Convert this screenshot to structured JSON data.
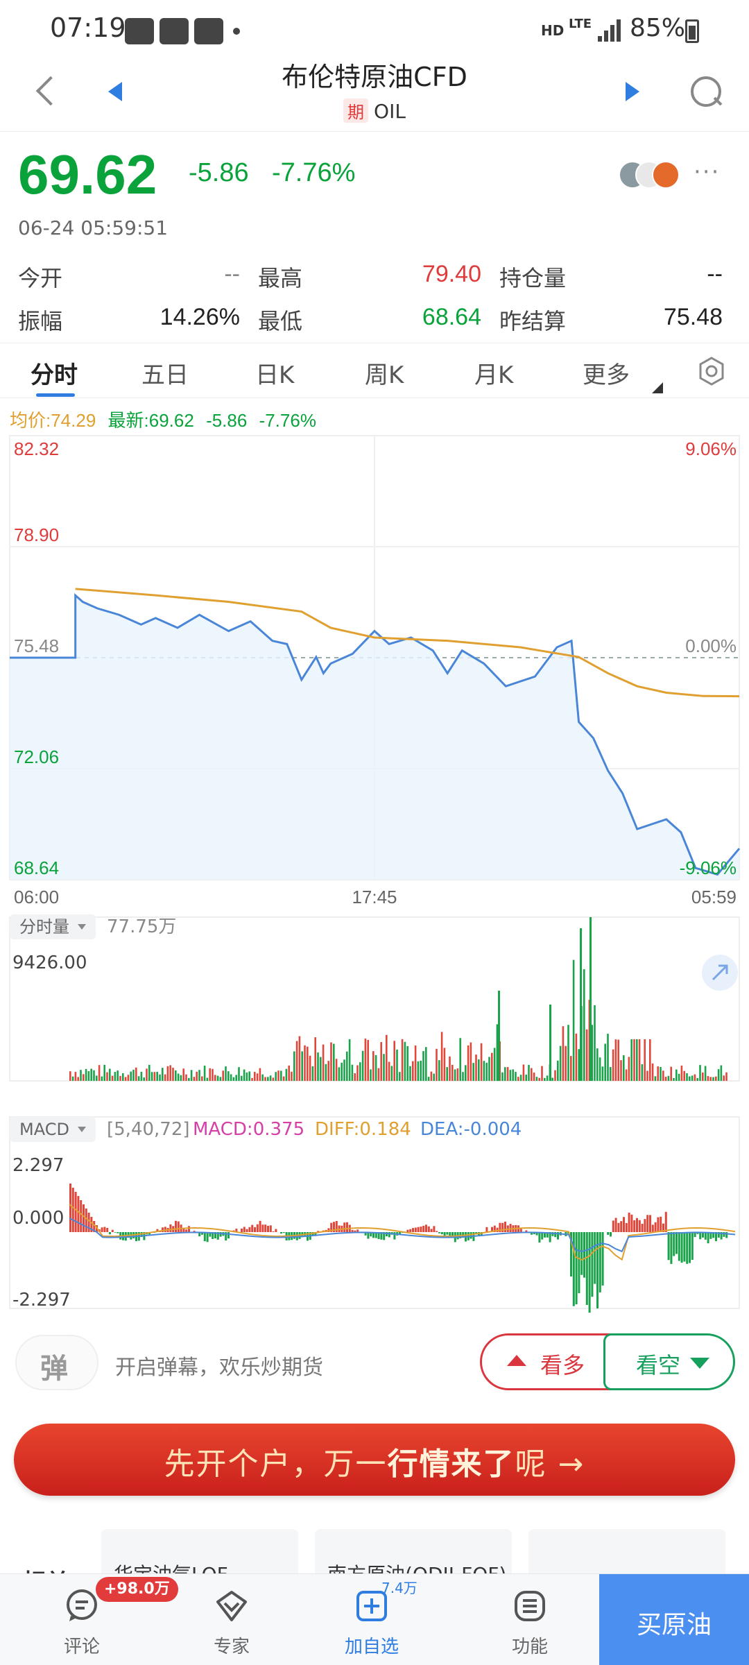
{
  "status_bar": {
    "time": "07:19",
    "network_hd": "HD",
    "network_lte": "LTE",
    "battery": "85%"
  },
  "header": {
    "title": "布伦特原油CFD",
    "badge": "期",
    "code": "OIL"
  },
  "quote": {
    "price": "69.62",
    "change": "-5.86",
    "change_pct": "-7.76%",
    "timestamp": "06-24 05:59:51"
  },
  "stats": {
    "open_label": "今开",
    "open_value": "--",
    "high_label": "最高",
    "high_value": "79.40",
    "oi_label": "持仓量",
    "oi_value": "--",
    "amp_label": "振幅",
    "amp_value": "14.26%",
    "low_label": "最低",
    "low_value": "68.64",
    "prev_label": "昨结算",
    "prev_value": "75.48"
  },
  "tabs": [
    "分时",
    "五日",
    "日K",
    "周K",
    "月K",
    "更多"
  ],
  "info_line": {
    "avg_label": "均价:74.29",
    "latest_label": "最新:69.62",
    "change": "-5.86",
    "pct": "-7.76%"
  },
  "chart_data": {
    "type": "line",
    "title": "",
    "x_ticks": [
      "06:00",
      "17:45",
      "05:59"
    ],
    "y_ticks_left": [
      "82.32",
      "78.90",
      "75.48",
      "72.06",
      "68.64"
    ],
    "y_ticks_right": [
      "9.06%",
      "0.00%",
      "-9.06%"
    ],
    "ylim": [
      68.64,
      82.32
    ],
    "reference_line": 75.48,
    "grid": true,
    "series": [
      {
        "name": "最新",
        "color": "#4a86d8",
        "x": [
          0,
          0.09,
          0.09,
          0.1,
          0.12,
          0.15,
          0.18,
          0.2,
          0.23,
          0.26,
          0.3,
          0.33,
          0.36,
          0.38,
          0.4,
          0.42,
          0.43,
          0.44,
          0.47,
          0.5,
          0.52,
          0.55,
          0.58,
          0.6,
          0.62,
          0.65,
          0.68,
          0.72,
          0.75,
          0.77,
          0.78,
          0.8,
          0.82,
          0.84,
          0.86,
          0.9,
          0.92,
          0.94,
          0.97,
          1
        ],
        "y": [
          75.48,
          75.48,
          77.4,
          77.2,
          77.0,
          76.8,
          76.5,
          76.7,
          76.4,
          76.8,
          76.3,
          76.6,
          76.0,
          75.9,
          74.8,
          75.5,
          75.0,
          75.3,
          75.6,
          76.3,
          75.9,
          76.1,
          75.7,
          75.0,
          75.7,
          75.3,
          74.6,
          74.9,
          75.8,
          76.0,
          73.5,
          73.0,
          72.0,
          71.3,
          70.2,
          70.5,
          70.1,
          69.0,
          68.8,
          69.6
        ]
      },
      {
        "name": "均价",
        "color": "#e0a030",
        "x": [
          0.09,
          0.2,
          0.3,
          0.4,
          0.44,
          0.5,
          0.6,
          0.7,
          0.78,
          0.82,
          0.86,
          0.9,
          0.95,
          1
        ],
        "y": [
          77.6,
          77.4,
          77.2,
          76.9,
          76.4,
          76.1,
          76.0,
          75.8,
          75.5,
          75.0,
          74.6,
          74.4,
          74.3,
          74.29
        ]
      }
    ]
  },
  "volume": {
    "label": "分时量",
    "total": "77.75万",
    "max": "9426.00"
  },
  "macd": {
    "label": "MACD",
    "params": "[5,40,72]",
    "macd": "MACD:0.375",
    "diff": "DIFF:0.184",
    "dea": "DEA:-0.004",
    "max": "2.297",
    "zero": "0.000",
    "min": "-2.297"
  },
  "action_bar": {
    "danmu_icon": "弹",
    "danmu_text": "开启弹幕，欢乐炒期货",
    "bull": "看多",
    "bear": "看空"
  },
  "banner": {
    "part1": "先开个户，万一",
    "part2": "行情来了",
    "part3": "呢 →"
  },
  "related": {
    "label": "相关",
    "cards": [
      "华宝油气LOF",
      "南方原油(QDII-FOF)C",
      ""
    ]
  },
  "bottom_nav": {
    "items": [
      {
        "label": "评论",
        "icon": "comment-icon"
      },
      {
        "label": "专家",
        "icon": "expert-icon"
      },
      {
        "label": "加自选",
        "icon": "add-watchlist-icon"
      },
      {
        "label": "功能",
        "icon": "menu-icon"
      }
    ],
    "comment_badge": "+98.0万",
    "watch_count": "7.4万",
    "buy_label": "买原油"
  },
  "colors": {
    "up": "#e03b3b",
    "down": "#0aa33b",
    "accent": "#2f7de1"
  }
}
